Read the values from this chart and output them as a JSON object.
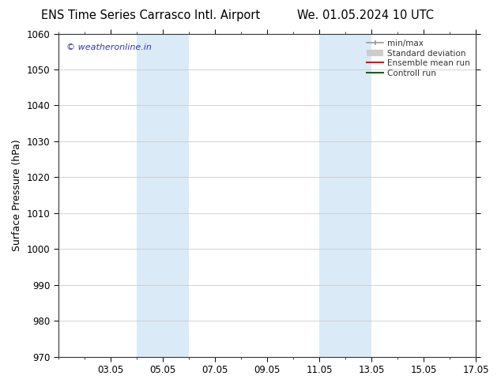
{
  "title_left": "ENS Time Series Carrasco Intl. Airport",
  "title_right": "We. 01.05.2024 10 UTC",
  "ylabel": "Surface Pressure (hPa)",
  "ylim": [
    970,
    1060
  ],
  "yticks": [
    970,
    980,
    990,
    1000,
    1010,
    1020,
    1030,
    1040,
    1050,
    1060
  ],
  "xlim": [
    1,
    17
  ],
  "xtick_labels": [
    "03.05",
    "05.05",
    "07.05",
    "09.05",
    "11.05",
    "13.05",
    "15.05",
    "17.05"
  ],
  "xtick_positions": [
    3,
    5,
    7,
    9,
    11,
    13,
    15,
    17
  ],
  "watermark": "© weatheronline.in",
  "watermark_color": "#3333bb",
  "shaded_bands": [
    {
      "x_start": 4,
      "x_end": 6,
      "color": "#daeaf7"
    },
    {
      "x_start": 11,
      "x_end": 13,
      "color": "#daeaf7"
    }
  ],
  "legend_entries": [
    {
      "label": "min/max",
      "color": "#999999",
      "lw": 1.2
    },
    {
      "label": "Standard deviation",
      "color": "#cccccc",
      "lw": 6
    },
    {
      "label": "Ensemble mean run",
      "color": "#dd0000",
      "lw": 1.5
    },
    {
      "label": "Controll run",
      "color": "#006600",
      "lw": 1.5
    }
  ],
  "background_color": "#ffffff",
  "grid_color": "#cccccc",
  "spine_color": "#333333",
  "title_fontsize": 10.5,
  "tick_fontsize": 8.5,
  "legend_fontsize": 7.5,
  "ylabel_fontsize": 9
}
